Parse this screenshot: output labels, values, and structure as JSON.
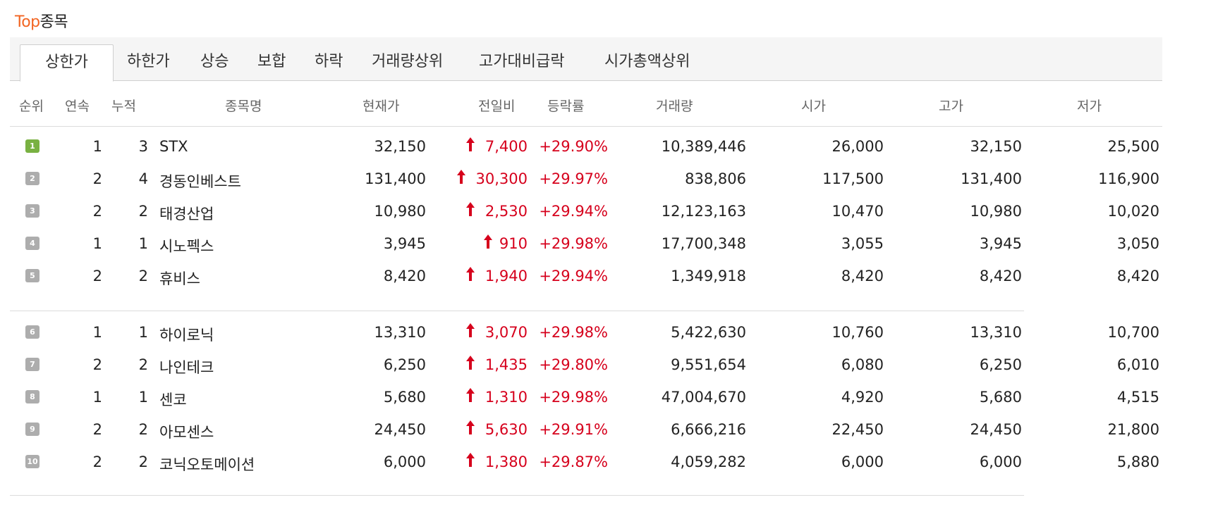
{
  "title": {
    "accent": "Top",
    "rest": "종목"
  },
  "tabs": [
    {
      "label": "상한가",
      "active": true
    },
    {
      "label": "하한가"
    },
    {
      "label": "상승"
    },
    {
      "label": "보합"
    },
    {
      "label": "하락"
    },
    {
      "label": "거래량상위"
    },
    {
      "label": "고가대비급락"
    },
    {
      "label": "시가총액상위"
    }
  ],
  "columns": [
    "순위",
    "연속",
    "누적",
    "종목명",
    "현재가",
    "전일비",
    "등락률",
    "거래량",
    "시가",
    "고가",
    "저가"
  ],
  "colors": {
    "accent": "#f26522",
    "rise": "#d6001c",
    "rank_first": "#79b142",
    "rank_other": "#adadad"
  },
  "icons": {
    "rank": "rank-badge-icon",
    "change": "up-arrow-icon"
  },
  "rows": [
    {
      "rank": "1",
      "streak": "1",
      "total": "3",
      "name": "STX",
      "price": "32,150",
      "change": "7,400",
      "rate": "+29.90%",
      "volume": "10,389,446",
      "open": "26,000",
      "high": "32,150",
      "low": "25,500"
    },
    {
      "rank": "2",
      "streak": "2",
      "total": "4",
      "name": "경동인베스트",
      "price": "131,400",
      "change": "30,300",
      "rate": "+29.97%",
      "volume": "838,806",
      "open": "117,500",
      "high": "131,400",
      "low": "116,900"
    },
    {
      "rank": "3",
      "streak": "2",
      "total": "2",
      "name": "태경산업",
      "price": "10,980",
      "change": "2,530",
      "rate": "+29.94%",
      "volume": "12,123,163",
      "open": "10,470",
      "high": "10,980",
      "low": "10,020"
    },
    {
      "rank": "4",
      "streak": "1",
      "total": "1",
      "name": "시노펙스",
      "price": "3,945",
      "change": "910",
      "rate": "+29.98%",
      "volume": "17,700,348",
      "open": "3,055",
      "high": "3,945",
      "low": "3,050"
    },
    {
      "rank": "5",
      "streak": "2",
      "total": "2",
      "name": "휴비스",
      "price": "8,420",
      "change": "1,940",
      "rate": "+29.94%",
      "volume": "1,349,918",
      "open": "8,420",
      "high": "8,420",
      "low": "8,420"
    },
    {
      "rank": "6",
      "streak": "1",
      "total": "1",
      "name": "하이로닉",
      "price": "13,310",
      "change": "3,070",
      "rate": "+29.98%",
      "volume": "5,422,630",
      "open": "10,760",
      "high": "13,310",
      "low": "10,700"
    },
    {
      "rank": "7",
      "streak": "2",
      "total": "2",
      "name": "나인테크",
      "price": "6,250",
      "change": "1,435",
      "rate": "+29.80%",
      "volume": "9,551,654",
      "open": "6,080",
      "high": "6,250",
      "low": "6,010"
    },
    {
      "rank": "8",
      "streak": "1",
      "total": "1",
      "name": "센코",
      "price": "5,680",
      "change": "1,310",
      "rate": "+29.98%",
      "volume": "47,004,670",
      "open": "4,920",
      "high": "5,680",
      "low": "4,515"
    },
    {
      "rank": "9",
      "streak": "2",
      "total": "2",
      "name": "아모센스",
      "price": "24,450",
      "change": "5,630",
      "rate": "+29.91%",
      "volume": "6,666,216",
      "open": "22,450",
      "high": "24,450",
      "low": "21,800"
    },
    {
      "rank": "10",
      "streak": "2",
      "total": "2",
      "name": "코닉오토메이션",
      "price": "6,000",
      "change": "1,380",
      "rate": "+29.87%",
      "volume": "4,059,282",
      "open": "6,000",
      "high": "6,000",
      "low": "5,880"
    }
  ]
}
